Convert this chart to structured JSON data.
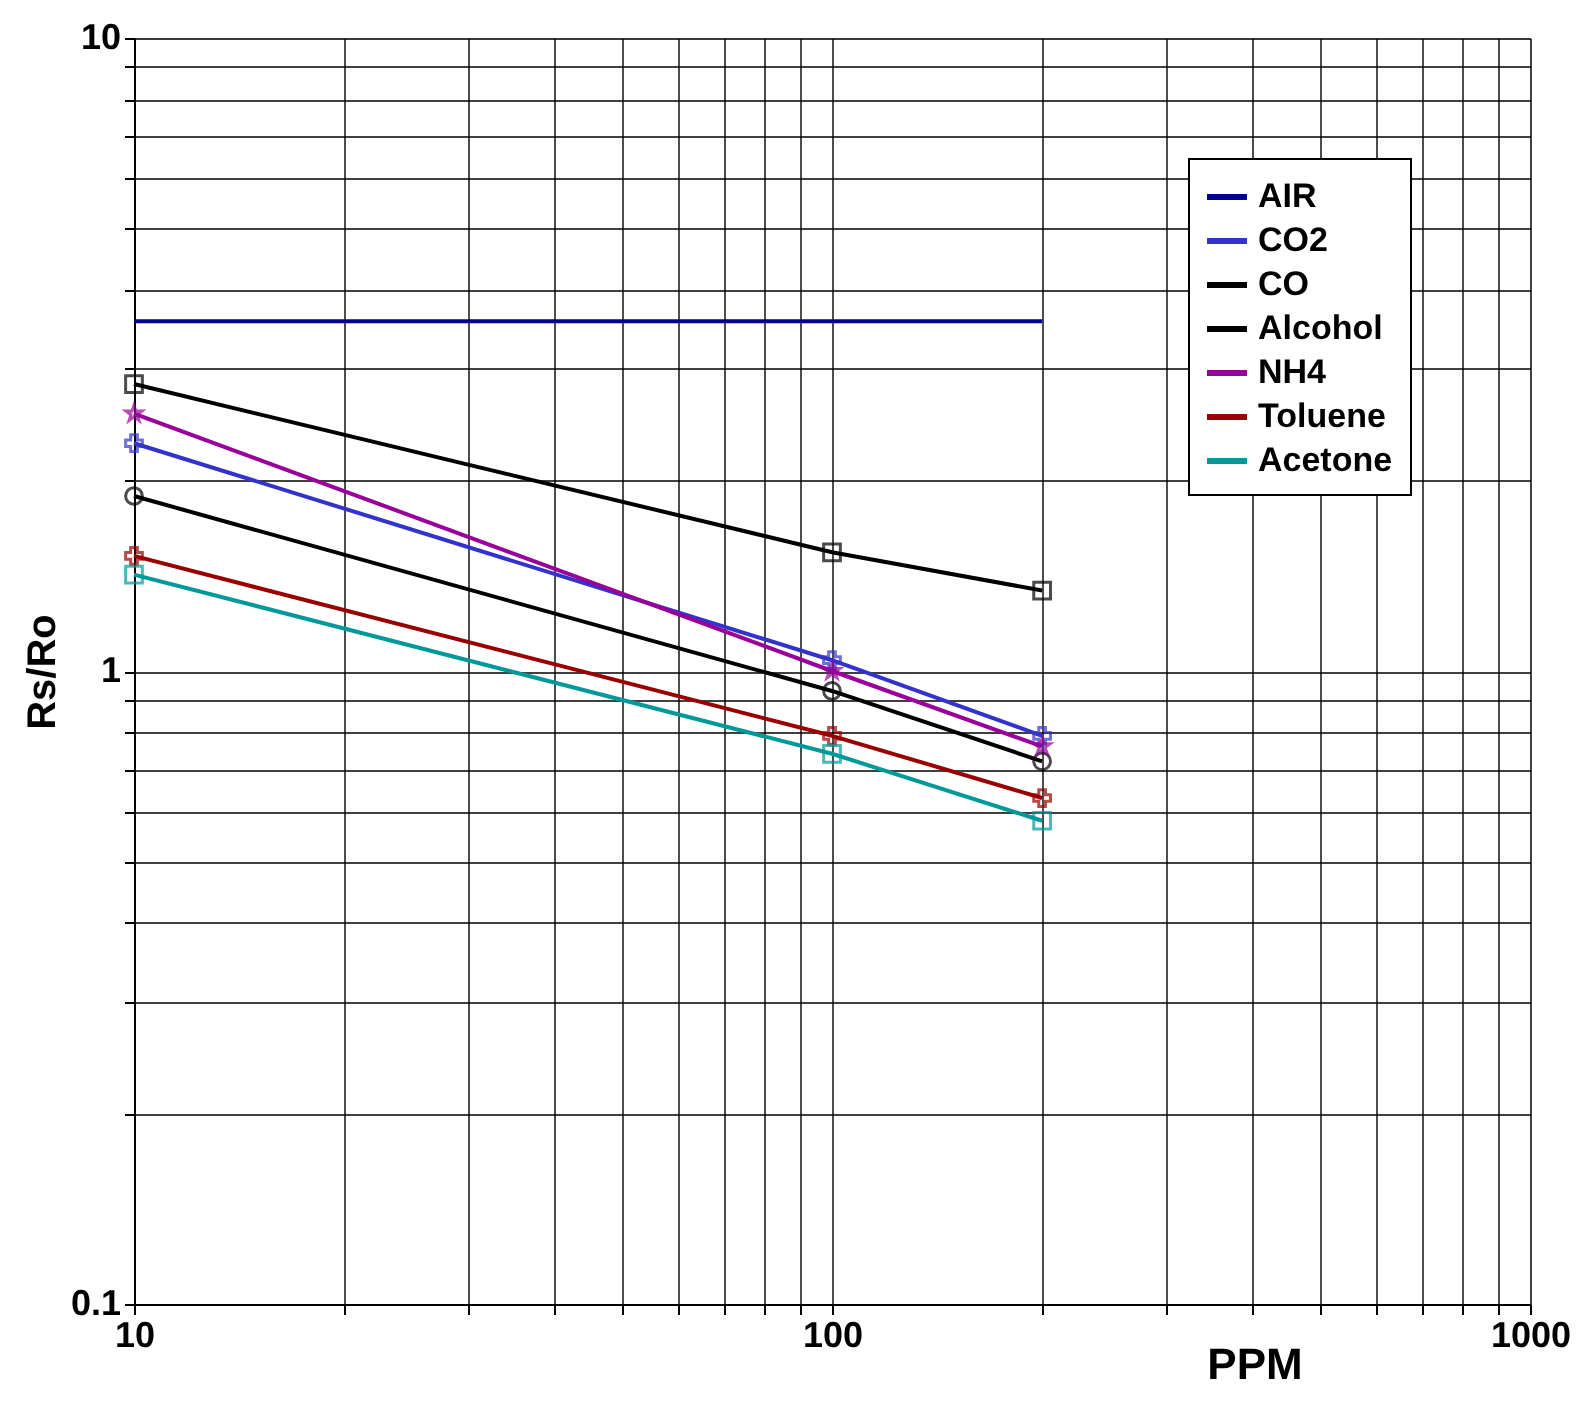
{
  "chart_data": {
    "type": "line",
    "xlabel": "PPM",
    "ylabel": "Rs/Ro",
    "log": "xy",
    "grid": true,
    "legend": "top right",
    "xlim": [
      10,
      1000
    ],
    "ylim": [
      0.1,
      10
    ],
    "xticks": [
      10,
      {
        "value": 20,
        "label": null
      },
      {
        "value": 30,
        "label": null
      },
      {
        "value": 40,
        "label": null
      },
      {
        "value": 50,
        "label": null
      },
      {
        "value": 60,
        "label": null
      },
      {
        "value": 70,
        "label": null
      },
      {
        "value": 80,
        "label": null
      },
      {
        "value": 90,
        "label": null
      },
      100,
      {
        "value": 200,
        "label": null
      },
      {
        "value": 300,
        "label": null
      },
      {
        "value": 400,
        "label": null
      },
      {
        "value": 500,
        "label": null
      },
      {
        "value": 600,
        "label": null
      },
      {
        "value": 700,
        "label": null
      },
      {
        "value": 800,
        "label": null
      },
      {
        "value": 900,
        "label": null
      },
      1000
    ],
    "yticks": [
      0.1,
      {
        "value": 0.2,
        "label": null
      },
      {
        "value": 0.3,
        "label": null
      },
      {
        "value": 0.4,
        "label": null
      },
      {
        "value": 0.5,
        "label": null
      },
      {
        "value": 0.6,
        "label": null
      },
      {
        "value": 0.7,
        "label": null
      },
      {
        "value": 0.8,
        "label": null
      },
      {
        "value": 0.9,
        "label": null
      },
      1,
      {
        "value": 2,
        "label": null
      },
      {
        "value": 3,
        "label": null
      },
      {
        "value": 4,
        "label": null
      },
      {
        "value": 5,
        "label": null
      },
      {
        "value": 6,
        "label": null
      },
      {
        "value": 7,
        "label": null
      },
      {
        "value": 8,
        "label": null
      },
      {
        "value": 9,
        "label": null
      },
      10
    ],
    "series": [
      {
        "name": "AIR",
        "color": "#000099",
        "marker": "none",
        "x": [
          10,
          200
        ],
        "values": [
          3.57,
          3.57
        ]
      },
      {
        "name": "CO2",
        "color": "#3333cc",
        "marker": "cross",
        "x": [
          10,
          100,
          200
        ],
        "values": [
          2.29,
          1.04,
          0.79
        ]
      },
      {
        "name": "CO",
        "color": "#000000",
        "marker": "square",
        "x": [
          10,
          100,
          200
        ],
        "values": [
          2.84,
          1.54,
          1.34
        ]
      },
      {
        "name": "Alcohol",
        "color": "#000000",
        "marker": "circle",
        "x": [
          10,
          100,
          200
        ],
        "values": [
          1.89,
          0.93,
          0.72
        ]
      },
      {
        "name": "NH4",
        "color": "#990099",
        "marker": "star",
        "x": [
          10,
          100,
          200
        ],
        "values": [
          2.55,
          1.0,
          0.76
        ]
      },
      {
        "name": "Toluene",
        "color": "#990000",
        "marker": "cross",
        "x": [
          10,
          100,
          200
        ],
        "values": [
          1.52,
          0.79,
          0.63
        ]
      },
      {
        "name": "Acetone",
        "color": "#009999",
        "marker": "square",
        "x": [
          10,
          100,
          200
        ],
        "values": [
          1.42,
          0.74,
          0.58
        ]
      }
    ]
  }
}
